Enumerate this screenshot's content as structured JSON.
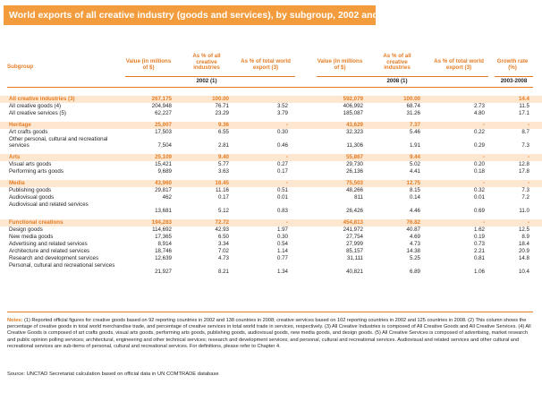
{
  "title": "World exports of all creative industry (goods and services), by subgroup, 2002 and 2008",
  "headers": {
    "subgroup": "Subgroup",
    "value_2002": "Value (in millions of $)",
    "share_2002": "As % of all creative industries",
    "world_2002": "As % of total world export (3)",
    "value_2008": "Value (in millions of $)",
    "share_2008": "As % of all creative industries",
    "world_2008": "As % of total world export (3)",
    "growth": "Growth rate (%)",
    "year_2002": "2002 (1)",
    "year_2008": "2008 (1)",
    "period": "2003-2008"
  },
  "rows": [
    {
      "kind": "group",
      "label": "All creative industries (3)",
      "v02": "267,175",
      "p02": "100.00",
      "w02": "",
      "v08": "592,079",
      "p08": "100.00",
      "w08": "",
      "g": "14.4"
    },
    {
      "kind": "item",
      "label": "All creative goods (4)",
      "v02": "204,948",
      "p02": "76.71",
      "w02": "3.52",
      "v08": "406,992",
      "p08": "68.74",
      "w08": "2.73",
      "g": "11.5"
    },
    {
      "kind": "item",
      "label": "All creative services (5)",
      "v02": "62,227",
      "p02": "23.29",
      "w02": "3.79",
      "v08": "185,087",
      "p08": "31.26",
      "w08": "4.80",
      "g": "17.1"
    },
    {
      "kind": "group",
      "label": "Heritage",
      "v02": "25,007",
      "p02": "9.36",
      "w02": "-",
      "v08": "43,629",
      "p08": "7.37",
      "w08": "-",
      "g": "-"
    },
    {
      "kind": "item",
      "label": "Art crafts goods",
      "v02": "17,503",
      "p02": "6.55",
      "w02": "0.30",
      "v08": "32,323",
      "p08": "5.46",
      "w08": "0.22",
      "g": "8.7"
    },
    {
      "kind": "item",
      "label": "Other personal, cultural and recreational services",
      "v02": "7,504",
      "p02": "2.81",
      "w02": "0.46",
      "v08": "11,306",
      "p08": "1.91",
      "w08": "0.29",
      "g": "7.3"
    },
    {
      "kind": "group",
      "label": "Arts",
      "v02": "25,109",
      "p02": "9.40",
      "w02": "-",
      "v08": "55,867",
      "p08": "9.44",
      "w08": "-",
      "g": "-"
    },
    {
      "kind": "item",
      "label": "Visual arts goods",
      "v02": "15,421",
      "p02": "5.77",
      "w02": "0.27",
      "v08": "29,730",
      "p08": "5.02",
      "w08": "0.20",
      "g": "12.8"
    },
    {
      "kind": "item",
      "label": "Performing arts goods",
      "v02": "9,689",
      "p02": "3.63",
      "w02": "0.17",
      "v08": "26,136",
      "p08": "4.41",
      "w08": "0.18",
      "g": "17.8"
    },
    {
      "kind": "group",
      "label": "Media",
      "v02": "43,960",
      "p02": "16.45",
      "w02": "-",
      "v08": "75,503",
      "p08": "12.75",
      "w08": "-",
      "g": "-"
    },
    {
      "kind": "item",
      "label": "Publishing goods",
      "v02": "29,817",
      "p02": "11.16",
      "w02": "0.51",
      "v08": "48,266",
      "p08": "8.15",
      "w08": "0.32",
      "g": "7.3"
    },
    {
      "kind": "item",
      "label": "Audiovisual goods",
      "v02": "462",
      "p02": "0.17",
      "w02": "0.01",
      "v08": "811",
      "p08": "0.14",
      "w08": "0.01",
      "g": "7.2"
    },
    {
      "kind": "item",
      "label": "Audiovisual and related services",
      "v02": "13,681",
      "p02": "5.12",
      "w02": "0.83",
      "v08": "26,426",
      "p08": "4.46",
      "w08": "0.69",
      "g": "11.0"
    },
    {
      "kind": "group",
      "label": "Functional creations",
      "v02": "194,283",
      "p02": "72.72",
      "w02": "-",
      "v08": "454,813",
      "p08": "76.82",
      "w08": "-",
      "g": "-"
    },
    {
      "kind": "item",
      "label": "Design goods",
      "v02": "114,692",
      "p02": "42.93",
      "w02": "1.97",
      "v08": "241,972",
      "p08": "40.87",
      "w08": "1.62",
      "g": "12.5"
    },
    {
      "kind": "item",
      "label": "New media goods",
      "v02": "17,365",
      "p02": "6.50",
      "w02": "0.30",
      "v08": "27,754",
      "p08": "4.69",
      "w08": "0.19",
      "g": "8.9"
    },
    {
      "kind": "item",
      "label": "Advertising and related services",
      "v02": "8,914",
      "p02": "3.34",
      "w02": "0.54",
      "v08": "27,999",
      "p08": "4.73",
      "w08": "0.73",
      "g": "18.4"
    },
    {
      "kind": "item",
      "label": "Architecture and related services",
      "v02": "18,746",
      "p02": "7.02",
      "w02": "1.14",
      "v08": "85,157",
      "p08": "14.38",
      "w08": "2.21",
      "g": "20.9"
    },
    {
      "kind": "item",
      "label": "Research and development services",
      "v02": "12,639",
      "p02": "4.73",
      "w02": "0.77",
      "v08": "31,111",
      "p08": "5.25",
      "w08": "0.81",
      "g": "14.8"
    },
    {
      "kind": "item",
      "label": "Personal, cultural and recreational services",
      "v02": "21,927",
      "p02": "8.21",
      "w02": "1.34",
      "v08": "40,821",
      "p08": "6.89",
      "w08": "1.06",
      "g": "10.4"
    }
  ],
  "notes_label": "Notes:",
  "notes_text": "(1) Reported official figures for creative goods based on 92 reporting countries in 2002 and 138 countries in 2008; creative services based on 102 reporting countries in 2002 and 125 countries in 2008. (2) This column shows the percentage of creative goods in total world merchandise trade, and percentage of creative services in total world trade in services, respectively. (3) All Creative Industries is composed of All Creative Goods and All Creative Services. (4) All Creative Goods is composed of art crafts goods, visual arts goods, performing arts goods, publishing goods, audiovisual goods, new media goods, and design goods. (5) All Creative Services is composed of advertising, market research and public opinion polling services; architectural, engineering and other technical services; research and development services; and personal, cultural and recreational services. Audiovisual and related services and other cultural and recreational services are sub-items of personal, cultural and recreational services. For definitions, please refer to Chapter 4.",
  "source_label": "Source:",
  "source_text": "UNCTAD Secretariat calculation based on official data in UN COMTRADE database"
}
